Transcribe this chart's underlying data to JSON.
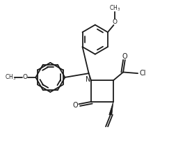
{
  "bg_color": "#ffffff",
  "line_color": "#1a1a1a",
  "line_width": 1.3,
  "fig_width": 2.43,
  "fig_height": 2.15,
  "dpi": 100,
  "xlim": [
    -3.5,
    3.5
  ],
  "ylim": [
    -2.5,
    3.8
  ]
}
